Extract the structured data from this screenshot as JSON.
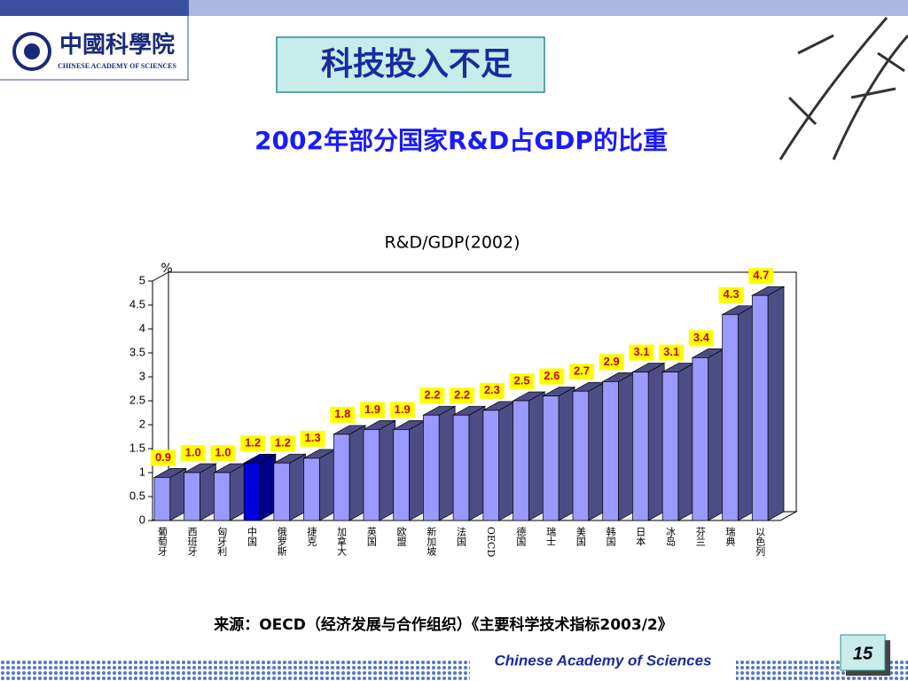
{
  "header": {
    "logo_title": "中國科學院",
    "logo_subtitle": "CHINESE ACADEMY OF SCIENCES",
    "slide_title": "科技投入不足",
    "subtitle": "2002年部分国家R&D占GDP的比重"
  },
  "chart_data": {
    "type": "bar3d",
    "title": "R&D/GDP(2002)",
    "y_unit": "%",
    "categories": [
      "葡萄牙",
      "西班牙",
      "匈牙利",
      "中国",
      "俄罗斯",
      "捷克",
      "加拿大",
      "英国",
      "欧盟",
      "新加坡",
      "法国",
      "OECD",
      "德国",
      "瑞士",
      "美国",
      "韩国",
      "日本",
      "冰岛",
      "芬兰",
      "瑞典",
      "以色列"
    ],
    "values": [
      0.9,
      1.0,
      1.0,
      1.2,
      1.2,
      1.3,
      1.8,
      1.9,
      1.9,
      2.2,
      2.2,
      2.3,
      2.5,
      2.6,
      2.7,
      2.9,
      3.1,
      3.1,
      3.4,
      4.3,
      4.7
    ],
    "value_labels": [
      "0.9",
      "1.0",
      "1.0",
      "1.2",
      "1.2",
      "1.3",
      "1.8",
      "1.9",
      "1.9",
      "2.2",
      "2.2",
      "2.3",
      "2.5",
      "2.6",
      "2.7",
      "2.9",
      "3.1",
      "3.1",
      "3.4",
      "4.3",
      "4.7"
    ],
    "colors": [
      "#9999ff",
      "#9999ff",
      "#9999ff",
      "#0000dd",
      "#9999ff",
      "#9999ff",
      "#9999ff",
      "#9999ff",
      "#9999ff",
      "#9999ff",
      "#9999ff",
      "#9999ff",
      "#9999ff",
      "#9999ff",
      "#9999ff",
      "#9999ff",
      "#9999ff",
      "#9999ff",
      "#9999ff",
      "#9999ff",
      "#9999ff"
    ],
    "ylim": [
      0,
      5
    ],
    "yticks": [
      0,
      0.5,
      1,
      1.5,
      2,
      2.5,
      3,
      3.5,
      4,
      4.5,
      5
    ]
  },
  "footer": {
    "source": "来源：OECD（经济发展与合作组织）《主要科学技术指标2003/2》",
    "organization": "Chinese Academy of Sciences",
    "page": "15"
  }
}
